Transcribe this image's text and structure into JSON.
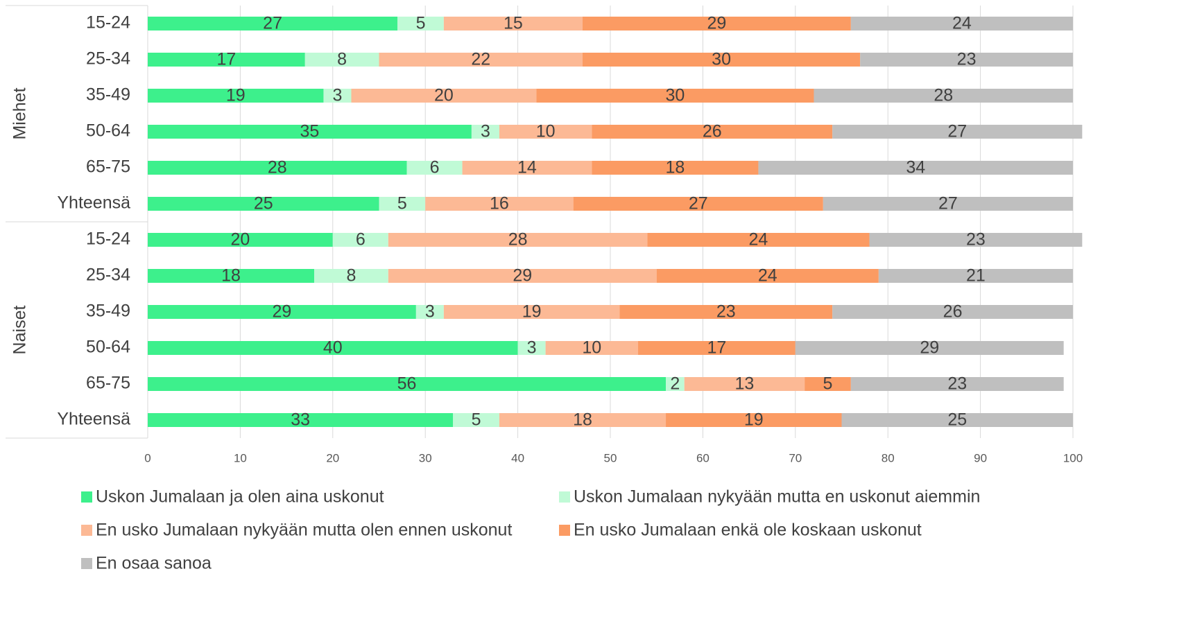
{
  "chart_data": {
    "type": "stacked_bar_horizontal",
    "groups": [
      {
        "name": "Miehet",
        "categories": [
          "15-24",
          "25-34",
          "35-49",
          "50-64",
          "65-75",
          "Yhteensä"
        ]
      },
      {
        "name": "Naiset",
        "categories": [
          "15-24",
          "25-34",
          "35-49",
          "50-64",
          "65-75",
          "Yhteensä"
        ]
      }
    ],
    "series": [
      {
        "name": "Uskon Jumalaan ja olen aina uskonut",
        "color": "#3df08c",
        "values": [
          27,
          17,
          19,
          35,
          28,
          25,
          20,
          18,
          29,
          40,
          56,
          33
        ]
      },
      {
        "name": "Uskon Jumalaan nykyään mutta en uskonut aiemmin",
        "color": "#c0fad6",
        "values": [
          5,
          8,
          3,
          3,
          6,
          5,
          6,
          8,
          3,
          3,
          2,
          5
        ]
      },
      {
        "name": "En usko Jumalaan nykyään mutta olen ennen uskonut",
        "color": "#fcb995",
        "values": [
          15,
          22,
          20,
          10,
          14,
          16,
          28,
          29,
          19,
          10,
          13,
          18
        ]
      },
      {
        "name": "En usko Jumalaan enkä ole koskaan uskonut",
        "color": "#fb9b63",
        "values": [
          29,
          30,
          30,
          26,
          18,
          27,
          24,
          24,
          23,
          17,
          5,
          19
        ]
      },
      {
        "name": "En osaa sanoa",
        "color": "#bfbfbf",
        "values": [
          24,
          23,
          28,
          27,
          34,
          27,
          23,
          21,
          26,
          29,
          23,
          25
        ]
      }
    ],
    "xlim": [
      0,
      100
    ],
    "xticks": [
      0,
      10,
      20,
      30,
      40,
      50,
      60,
      70,
      80,
      90,
      100
    ],
    "grid": true
  }
}
